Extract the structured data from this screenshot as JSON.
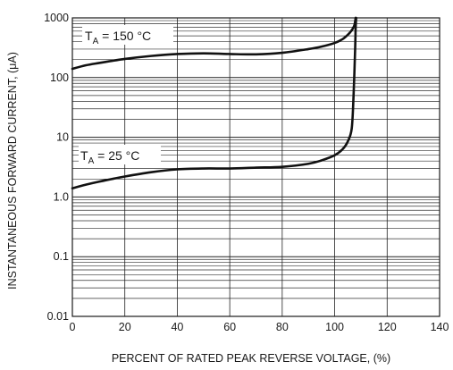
{
  "chart_data": {
    "type": "line",
    "title": "",
    "xlabel": "PERCENT OF RATED PEAK REVERSE VOLTAGE, (%)",
    "ylabel": "INSTANTANEOUS FORWARD CURRENT, (μA)",
    "xlim": [
      0,
      140
    ],
    "ylim": [
      0.01,
      1000
    ],
    "y_scale": "log",
    "grid": true,
    "x_ticks": [
      "0",
      "20",
      "40",
      "60",
      "80",
      "100",
      "120",
      "140"
    ],
    "y_ticks": [
      "0.01",
      "0.1",
      "1.0",
      "10",
      "100",
      "1000"
    ],
    "series": [
      {
        "name": "T_A = 150 °C",
        "x": [
          0,
          5,
          10,
          20,
          30,
          40,
          50,
          60,
          70,
          80,
          90,
          95,
          100,
          103,
          105,
          106.5,
          107.5,
          108
        ],
        "y": [
          140,
          160,
          175,
          205,
          230,
          248,
          255,
          248,
          245,
          260,
          300,
          330,
          380,
          440,
          520,
          620,
          750,
          1000
        ]
      },
      {
        "name": "T_A = 25 °C",
        "x": [
          0,
          5,
          10,
          20,
          30,
          40,
          50,
          60,
          70,
          80,
          90,
          95,
          100,
          103,
          105,
          106.5,
          107.2,
          107.8,
          108,
          108.2
        ],
        "y": [
          1.4,
          1.6,
          1.8,
          2.2,
          2.6,
          2.9,
          3.0,
          3.0,
          3.1,
          3.2,
          3.6,
          4.1,
          5.0,
          6.3,
          8.5,
          14,
          50,
          300,
          700,
          1000
        ]
      }
    ],
    "annotations": [
      {
        "main": "T",
        "sub": "A",
        "rest": " = 150 °C"
      },
      {
        "main": "T",
        "sub": "A",
        "rest": " = 25 °C"
      }
    ]
  }
}
